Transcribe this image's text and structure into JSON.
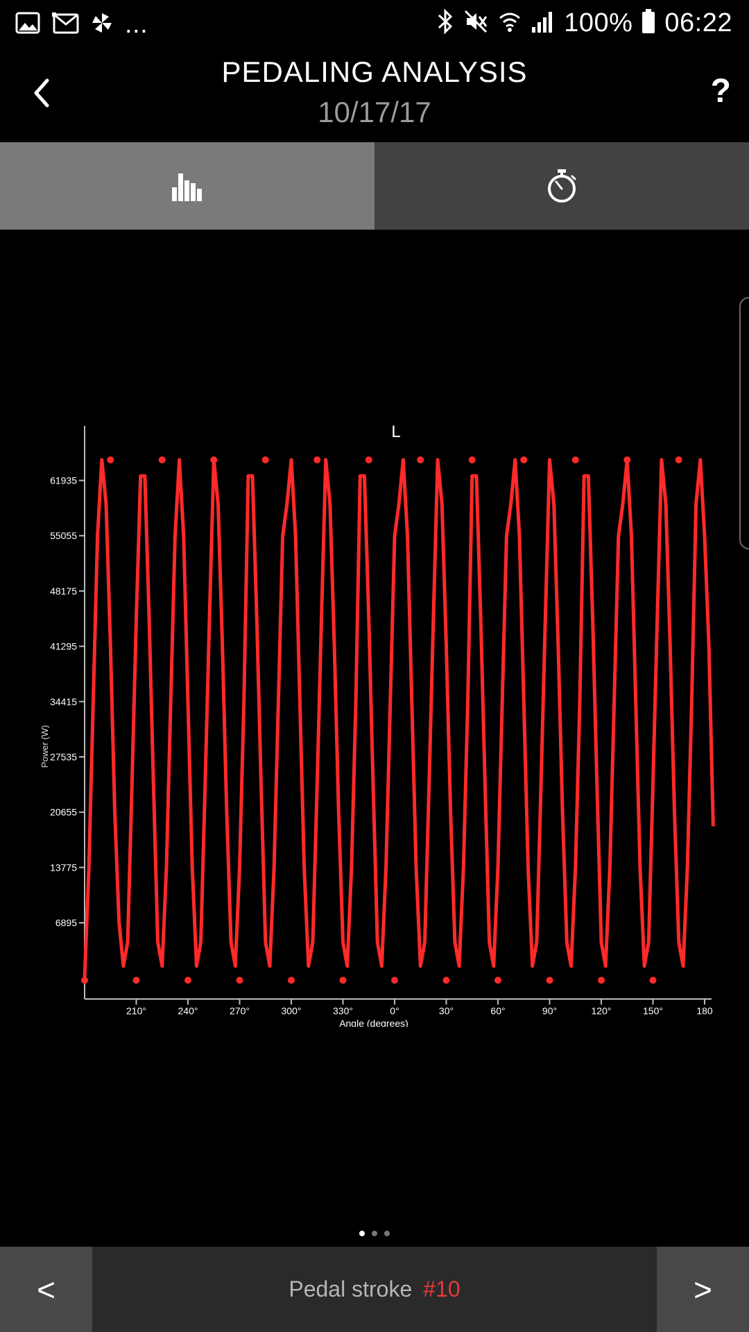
{
  "status_bar": {
    "icons_left": [
      "gallery-icon",
      "gmail-icon",
      "pinwheel-icon"
    ],
    "more": "...",
    "icons_right": [
      "bluetooth-icon",
      "mute-icon",
      "wifi-icon",
      "signal-icon",
      "battery-icon"
    ],
    "battery": "100%",
    "time": "06:22"
  },
  "header": {
    "title": "PEDALING ANALYSIS",
    "date": "10/17/17",
    "help": "?"
  },
  "tabs": [
    {
      "icon": "bar-chart-icon",
      "active": true
    },
    {
      "icon": "stopwatch-icon",
      "active": false
    }
  ],
  "chart_data": {
    "type": "line",
    "title": "L",
    "xlabel": "Angle (degrees)",
    "ylabel": "Power (W)",
    "x_tick_labels": [
      "210°",
      "240°",
      "270°",
      "300°",
      "330°",
      "0°",
      "30°",
      "60°",
      "90°",
      "120°",
      "150°",
      "180"
    ],
    "y_tick_labels": [
      "6895",
      "13775",
      "20655",
      "27535",
      "34415",
      "41295",
      "48175",
      "55055",
      "61935"
    ],
    "y_tick_values": [
      6895,
      13775,
      20655,
      27535,
      34415,
      41295,
      48175,
      55055,
      61935
    ],
    "ylim": [
      0,
      66000
    ],
    "x_range_deg": [
      180,
      540
    ],
    "grid": false,
    "color": "#ff2a2a",
    "series": [
      {
        "points": [
          [
            180,
            0
          ],
          [
            182.5,
            13800
          ],
          [
            185,
            34400
          ],
          [
            187.5,
            55000
          ],
          [
            190,
            64500
          ],
          [
            192.5,
            59000
          ],
          [
            195,
            41300
          ],
          [
            197.5,
            20700
          ],
          [
            200,
            6900
          ],
          [
            202.5,
            1500
          ],
          [
            205,
            4500
          ],
          [
            207.5,
            24100
          ],
          [
            210,
            44700
          ],
          [
            212.5,
            62500
          ],
          [
            215,
            62500
          ],
          [
            217.5,
            44700
          ],
          [
            220,
            24100
          ],
          [
            222.5,
            4500
          ],
          [
            225,
            1500
          ],
          [
            227.5,
            13800
          ],
          [
            230,
            34400
          ],
          [
            232.5,
            55000
          ],
          [
            235,
            64500
          ],
          [
            237.5,
            55000
          ],
          [
            240,
            34400
          ],
          [
            242.5,
            13800
          ],
          [
            245,
            1500
          ],
          [
            247.5,
            4500
          ],
          [
            250,
            24100
          ],
          [
            252.5,
            44700
          ],
          [
            255,
            64500
          ],
          [
            257.5,
            59000
          ],
          [
            260,
            41300
          ],
          [
            262.5,
            20700
          ],
          [
            265,
            4500
          ],
          [
            267.5,
            1500
          ],
          [
            270,
            13800
          ],
          [
            272.5,
            34400
          ],
          [
            275,
            62500
          ],
          [
            277.5,
            62500
          ],
          [
            280,
            44700
          ],
          [
            282.5,
            24100
          ],
          [
            285,
            4500
          ],
          [
            287.5,
            1500
          ],
          [
            290,
            13800
          ],
          [
            292.5,
            34400
          ],
          [
            295,
            55000
          ],
          [
            297.5,
            59000
          ],
          [
            300,
            64500
          ],
          [
            302.5,
            55000
          ],
          [
            305,
            34400
          ],
          [
            307.5,
            13800
          ],
          [
            310,
            1500
          ],
          [
            312.5,
            4500
          ],
          [
            315,
            24100
          ],
          [
            317.5,
            44700
          ],
          [
            320,
            64500
          ],
          [
            322.5,
            59000
          ],
          [
            325,
            41300
          ],
          [
            327.5,
            20700
          ],
          [
            330,
            4500
          ],
          [
            332.5,
            1500
          ],
          [
            335,
            13800
          ],
          [
            337.5,
            34400
          ],
          [
            340,
            62500
          ],
          [
            342.5,
            62500
          ],
          [
            345,
            44700
          ],
          [
            347.5,
            24100
          ],
          [
            350,
            4500
          ],
          [
            352.5,
            1500
          ],
          [
            355,
            13800
          ],
          [
            357.5,
            34400
          ],
          [
            360,
            55000
          ],
          [
            362.5,
            59000
          ],
          [
            365,
            64500
          ],
          [
            367.5,
            55000
          ],
          [
            370,
            34400
          ],
          [
            372.5,
            13800
          ],
          [
            375,
            1500
          ],
          [
            377.5,
            4500
          ],
          [
            380,
            24100
          ],
          [
            382.5,
            44700
          ],
          [
            385,
            64500
          ],
          [
            387.5,
            59000
          ],
          [
            390,
            41300
          ],
          [
            392.5,
            20700
          ],
          [
            395,
            4500
          ],
          [
            397.5,
            1500
          ],
          [
            400,
            13800
          ],
          [
            402.5,
            34400
          ],
          [
            405,
            62500
          ],
          [
            407.5,
            62500
          ],
          [
            410,
            44700
          ],
          [
            412.5,
            24100
          ],
          [
            415,
            4500
          ],
          [
            417.5,
            1500
          ],
          [
            420,
            13800
          ],
          [
            422.5,
            34400
          ],
          [
            425,
            55000
          ],
          [
            427.5,
            59000
          ],
          [
            430,
            64500
          ],
          [
            432.5,
            55000
          ],
          [
            435,
            34400
          ],
          [
            437.5,
            13800
          ],
          [
            440,
            1500
          ],
          [
            442.5,
            4500
          ],
          [
            445,
            24100
          ],
          [
            447.5,
            44700
          ],
          [
            450,
            64500
          ],
          [
            452.5,
            59000
          ],
          [
            455,
            41300
          ],
          [
            457.5,
            20700
          ],
          [
            460,
            4500
          ],
          [
            462.5,
            1500
          ],
          [
            465,
            13800
          ],
          [
            467.5,
            34400
          ],
          [
            470,
            62500
          ],
          [
            472.5,
            62500
          ],
          [
            475,
            44700
          ],
          [
            477.5,
            24100
          ],
          [
            480,
            4500
          ],
          [
            482.5,
            1500
          ],
          [
            485,
            13800
          ],
          [
            487.5,
            34400
          ],
          [
            490,
            55000
          ],
          [
            492.5,
            59000
          ],
          [
            495,
            64500
          ],
          [
            497.5,
            55000
          ],
          [
            500,
            34400
          ],
          [
            502.5,
            13800
          ],
          [
            505,
            1500
          ],
          [
            507.5,
            4500
          ],
          [
            510,
            24100
          ],
          [
            512.5,
            44700
          ],
          [
            515,
            64500
          ],
          [
            517.5,
            59000
          ],
          [
            520,
            41300
          ],
          [
            522.5,
            20700
          ],
          [
            525,
            4500
          ],
          [
            527.5,
            1500
          ],
          [
            530,
            13800
          ],
          [
            532.5,
            34400
          ],
          [
            535,
            59000
          ],
          [
            537.5,
            64500
          ],
          [
            540,
            55000
          ],
          [
            542.5,
            41300
          ],
          [
            545,
            18900
          ]
        ]
      }
    ],
    "markers_top_x": [
      195,
      225,
      255,
      285,
      315,
      345,
      375,
      405,
      435,
      465,
      495,
      525
    ],
    "markers_top_y": 64500,
    "markers_bottom_x": [
      180,
      210,
      240,
      270,
      300,
      330,
      360,
      390,
      420,
      450,
      480,
      510
    ],
    "markers_bottom_y": 0
  },
  "pager": {
    "count": 3,
    "active": 0
  },
  "bottom_bar": {
    "prev": "<",
    "next": ">",
    "label": "Pedal stroke",
    "number": "#10"
  }
}
